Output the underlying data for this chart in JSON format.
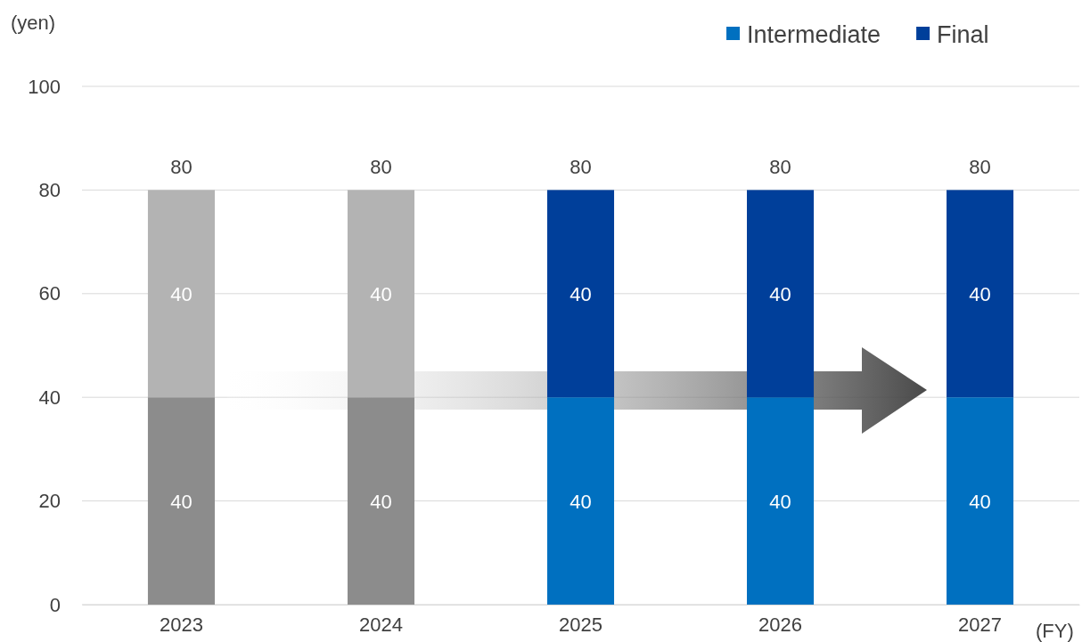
{
  "chart_data": {
    "type": "bar",
    "stacked": true,
    "ylabel": "(yen)",
    "xlabel": "(FY)",
    "categories": [
      "2023",
      "2024",
      "2025",
      "2026",
      "2027"
    ],
    "series": [
      {
        "name": "Intermediate",
        "color": "#0070c0",
        "colors": [
          "#8c8c8c",
          "#8c8c8c",
          "#0070c0",
          "#0070c0",
          "#0070c0"
        ],
        "values": [
          40,
          40,
          40,
          40,
          40
        ]
      },
      {
        "name": "Final",
        "color": "#003f9a",
        "colors": [
          "#b3b3b3",
          "#b3b3b3",
          "#003f9a",
          "#003f9a",
          "#003f9a"
        ],
        "values": [
          40,
          40,
          40,
          40,
          40
        ]
      }
    ],
    "totals": [
      "80",
      "80",
      "80",
      "80",
      "80"
    ],
    "data_labels": true,
    "ylim": [
      0,
      100
    ],
    "yticks": [
      0,
      20,
      40,
      60,
      80,
      100
    ],
    "grid": "y",
    "legend": "top right"
  }
}
